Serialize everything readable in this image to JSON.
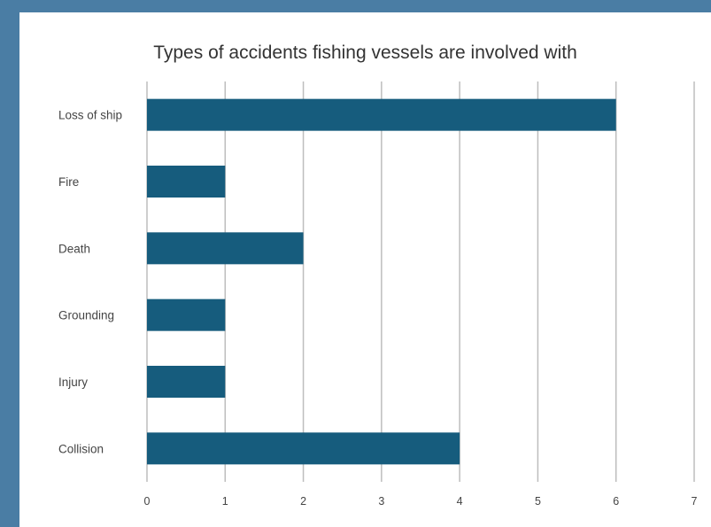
{
  "chart_data": {
    "type": "bar",
    "orientation": "horizontal",
    "title": "Types of accidents fishing vessels are involved with",
    "categories": [
      "Loss of ship",
      "Fire",
      "Death",
      "Grounding",
      "Injury",
      "Collision"
    ],
    "values": [
      6,
      1,
      2,
      1,
      1,
      4
    ],
    "xlim": [
      0,
      7
    ],
    "xticks": [
      "0",
      "1",
      "2",
      "3",
      "4",
      "5",
      "6",
      "7"
    ],
    "xlabel": "",
    "ylabel": "",
    "grid": "vertical",
    "legend": "none",
    "bar_color": "#165c7d"
  },
  "colors": {
    "frame_background": "#4a7da4",
    "card_background": "#ffffff",
    "gridline": "#bdbdbd"
  }
}
